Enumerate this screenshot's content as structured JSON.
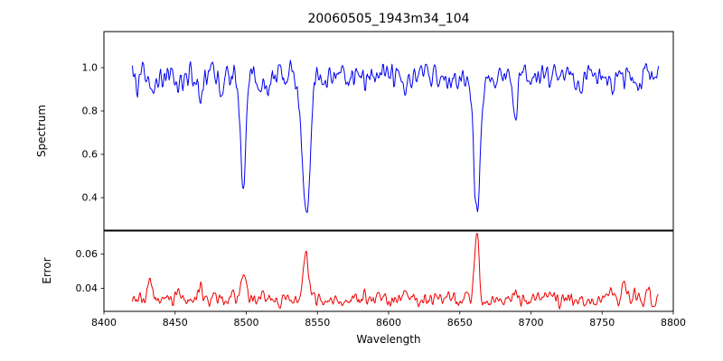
{
  "chart_data": {
    "type": "line",
    "title": "20060505_1943m34_104",
    "xlabel": "Wavelength",
    "legend": "none",
    "grid": false,
    "x_range": [
      8400,
      8800
    ],
    "x_ticks": [
      8400,
      8450,
      8500,
      8550,
      8600,
      8650,
      8700,
      8750,
      8800
    ],
    "x_data_range": [
      8420,
      8790
    ],
    "x_step": 0.6,
    "panels": [
      {
        "name": "spectrum",
        "ylabel": "Spectrum",
        "color": "#0000ee",
        "y_range": [
          0.25,
          1.1667
        ],
        "y_ticks": [
          0.4,
          0.6,
          0.8,
          1.0
        ],
        "tick_decimals": 1,
        "base": 0.96,
        "noise_amplitude": 0.16,
        "seed": 12345,
        "feature_direction": "down",
        "features": [
          {
            "center": 8424,
            "amp": 0.07,
            "sigma": 1.2
          },
          {
            "center": 8433,
            "amp": 0.1,
            "sigma": 1.4
          },
          {
            "center": 8452,
            "amp": 0.05,
            "sigma": 1.2
          },
          {
            "center": 8468,
            "amp": 0.13,
            "sigma": 1.6
          },
          {
            "center": 8483,
            "amp": 0.06,
            "sigma": 1.2
          },
          {
            "center": 8498,
            "amp": 0.51,
            "sigma": 1.9
          },
          {
            "center": 8508,
            "amp": 0.07,
            "sigma": 1.2
          },
          {
            "center": 8515,
            "amp": 0.1,
            "sigma": 1.3
          },
          {
            "center": 8542,
            "amp": 0.635,
            "sigma": 2.6
          },
          {
            "center": 8583,
            "amp": 0.05,
            "sigma": 1.3
          },
          {
            "center": 8611,
            "amp": 0.05,
            "sigma": 1.2
          },
          {
            "center": 8648,
            "amp": 0.05,
            "sigma": 1.2
          },
          {
            "center": 8662,
            "amp": 0.63,
            "sigma": 2.3
          },
          {
            "center": 8674,
            "amp": 0.05,
            "sigma": 1.2
          },
          {
            "center": 8689,
            "amp": 0.23,
            "sigma": 1.5
          },
          {
            "center": 8713,
            "amp": 0.05,
            "sigma": 1.2
          },
          {
            "center": 8736,
            "amp": 0.05,
            "sigma": 1.2
          },
          {
            "center": 8757,
            "amp": 0.08,
            "sigma": 1.3
          },
          {
            "center": 8773,
            "amp": 0.07,
            "sigma": 1.3
          }
        ]
      },
      {
        "name": "error",
        "ylabel": "Error",
        "color": "#ee0000",
        "y_range": [
          0.0265,
          0.0735
        ],
        "y_ticks": [
          0.04,
          0.06
        ],
        "tick_decimals": 2,
        "base": 0.0335,
        "noise_amplitude": 0.012,
        "seed": 99,
        "feature_direction": "up",
        "features": [
          {
            "center": 8425,
            "amp": 0.004,
            "sigma": 1.2
          },
          {
            "center": 8432,
            "amp": 0.012,
            "sigma": 1.3
          },
          {
            "center": 8452,
            "amp": 0.004,
            "sigma": 1.2
          },
          {
            "center": 8468,
            "amp": 0.007,
            "sigma": 1.4
          },
          {
            "center": 8490,
            "amp": 0.004,
            "sigma": 1.1
          },
          {
            "center": 8498,
            "amp": 0.014,
            "sigma": 1.5
          },
          {
            "center": 8515,
            "amp": 0.004,
            "sigma": 1.2
          },
          {
            "center": 8542,
            "amp": 0.027,
            "sigma": 1.7
          },
          {
            "center": 8583,
            "amp": 0.002,
            "sigma": 1.2
          },
          {
            "center": 8611,
            "amp": 0.002,
            "sigma": 1.2
          },
          {
            "center": 8662,
            "amp": 0.04,
            "sigma": 1.5
          },
          {
            "center": 8689,
            "amp": 0.007,
            "sigma": 1.4
          },
          {
            "center": 8713,
            "amp": 0.002,
            "sigma": 1.2
          },
          {
            "center": 8757,
            "amp": 0.005,
            "sigma": 1.3
          },
          {
            "center": 8765,
            "amp": 0.009,
            "sigma": 1.3
          },
          {
            "center": 8773,
            "amp": 0.006,
            "sigma": 1.2
          },
          {
            "center": 8782,
            "amp": 0.009,
            "sigma": 1.3
          }
        ]
      }
    ]
  }
}
